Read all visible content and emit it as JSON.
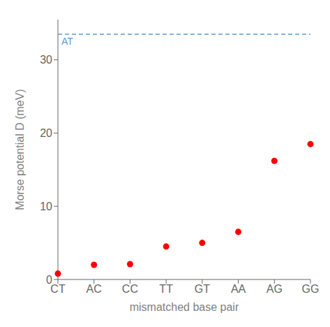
{
  "chart_data": {
    "type": "scatter",
    "categories": [
      "CT",
      "AC",
      "CC",
      "TT",
      "GT",
      "AA",
      "AG",
      "GG"
    ],
    "values": [
      0.8,
      2.0,
      2.1,
      4.5,
      5.0,
      6.5,
      16.2,
      18.5
    ],
    "color": "#ff0000",
    "xlabel": "mismatched base pair",
    "ylabel": "Morse potential D (meV)",
    "ylim": [
      0,
      35.5
    ],
    "yticks": [
      0,
      10,
      20,
      30
    ],
    "grid": false,
    "reference_lines": [
      {
        "y": 33.5,
        "label": "AT",
        "color": "#5b9bd5",
        "line_style": "dashed"
      }
    ]
  }
}
